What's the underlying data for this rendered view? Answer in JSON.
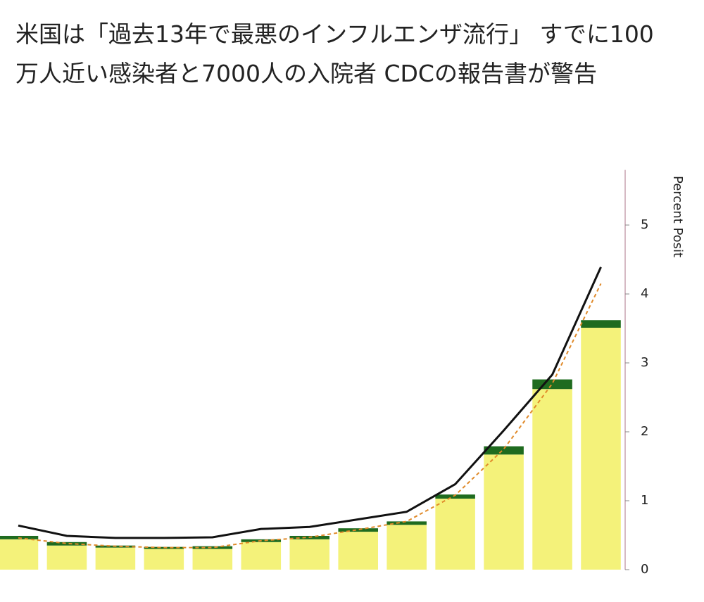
{
  "chart_data": {
    "type": "bar",
    "stacked": true,
    "title": [
      "米国は「過去13年で最悪のインフルエンザ流行」 すでに100",
      "万人近い感染者と7000人の入院者 CDCの報告書が警告"
    ],
    "y_label": "Percent Posit",
    "categories": [
      null,
      null,
      null,
      null,
      null,
      null,
      null,
      null,
      null,
      null,
      null,
      null,
      null
    ],
    "series": [
      {
        "color": "#f4f27a",
        "values": [
          0.44,
          0.35,
          0.32,
          0.3,
          0.3,
          0.4,
          0.44,
          0.55,
          0.65,
          1.03,
          1.67,
          2.62,
          3.51
        ]
      },
      {
        "color": "#1f6b1f",
        "values": [
          0.05,
          0.05,
          0.03,
          0.03,
          0.04,
          0.04,
          0.05,
          0.05,
          0.05,
          0.06,
          0.12,
          0.14,
          0.11
        ]
      },
      {
        "type": "line",
        "color": "#111111",
        "values": [
          0.64,
          0.49,
          0.46,
          0.46,
          0.47,
          0.59,
          0.62,
          0.73,
          0.84,
          1.24,
          2.02,
          2.83,
          4.39
        ]
      },
      {
        "type": "line",
        "dashed": true,
        "color": "#e08a2a",
        "values": [
          0.46,
          0.38,
          0.34,
          0.32,
          0.32,
          0.42,
          0.47,
          0.58,
          0.7,
          1.08,
          1.75,
          2.7,
          4.15
        ]
      }
    ],
    "ylim": [
      0,
      5.8
    ],
    "yticks": [
      0,
      1,
      2,
      3,
      4,
      5
    ]
  }
}
